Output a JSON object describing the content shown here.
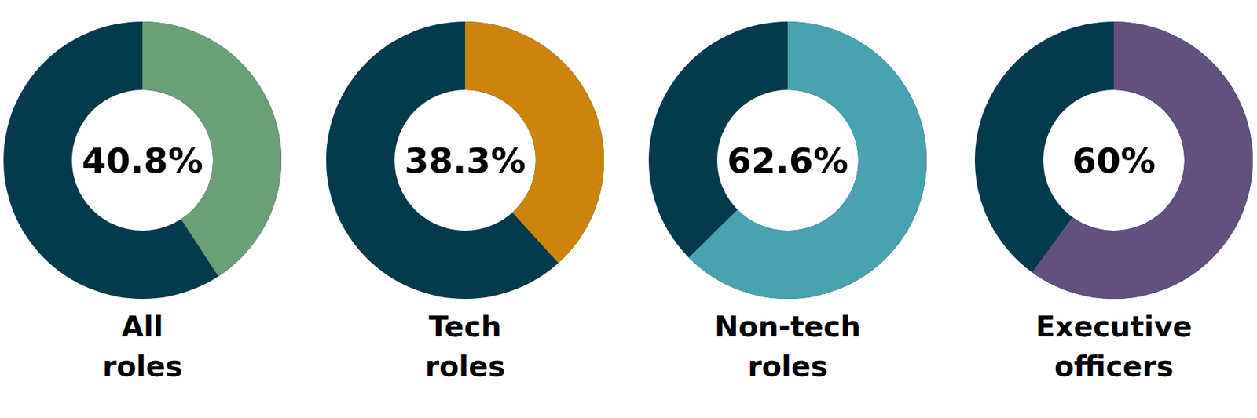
{
  "chart_data": [
    {
      "type": "donut",
      "title": "All roles",
      "values": [
        40.8
      ],
      "value_labels": [
        "40.8%"
      ],
      "color": "#6b9f78",
      "ylim": [
        0,
        100
      ],
      "data_labels": true
    },
    {
      "type": "donut",
      "title": "Tech roles",
      "values": [
        38.3
      ],
      "value_labels": [
        "38.3%"
      ],
      "color": "#cc840c",
      "ylim": [
        0,
        100
      ],
      "data_labels": true
    },
    {
      "type": "donut",
      "title": "Non-tech roles",
      "values": [
        62.6
      ],
      "value_labels": [
        "62.6%"
      ],
      "color": "#48a2b0",
      "ylim": [
        0,
        100
      ],
      "data_labels": true
    },
    {
      "type": "donut",
      "title": "Executive officers",
      "values": [
        60
      ],
      "value_labels": [
        "60%"
      ],
      "color": "#62507e",
      "ylim": [
        0,
        100
      ],
      "data_labels": true
    }
  ]
}
